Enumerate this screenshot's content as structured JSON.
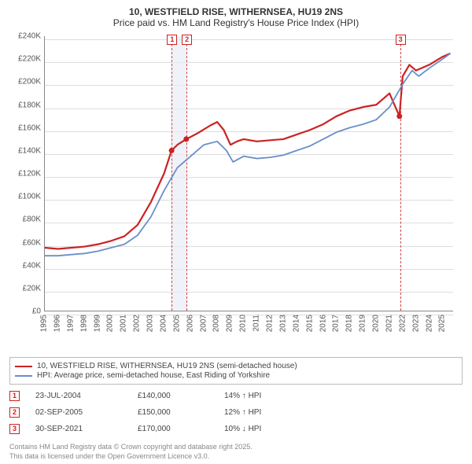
{
  "title": "10, WESTFIELD RISE, WITHERNSEA, HU19 2NS",
  "subtitle": "Price paid vs. HM Land Registry's House Price Index (HPI)",
  "chart": {
    "type": "line",
    "ylim": [
      0,
      240000
    ],
    "ytick_step": 20000,
    "ylabel_prefix": "£",
    "ylabel_k_suffix": "K",
    "xlim": [
      1995,
      2025.8
    ],
    "xticks": [
      1995,
      1996,
      1997,
      1998,
      1999,
      2000,
      2001,
      2002,
      2003,
      2004,
      2005,
      2006,
      2007,
      2008,
      2009,
      2010,
      2011,
      2012,
      2013,
      2014,
      2015,
      2016,
      2017,
      2018,
      2019,
      2020,
      2021,
      2022,
      2023,
      2024,
      2025
    ],
    "background_color": "#ffffff",
    "grid_color": "#dddddd",
    "series": [
      {
        "name": "property",
        "label": "10, WESTFIELD RISE, WITHERNSEA, HU19 2NS (semi-detached house)",
        "color": "#cc2222",
        "width": 2.2,
        "points": [
          [
            1995.0,
            55000
          ],
          [
            1996.0,
            54000
          ],
          [
            1997.0,
            55000
          ],
          [
            1998.0,
            56000
          ],
          [
            1999.0,
            58000
          ],
          [
            2000.0,
            61000
          ],
          [
            2001.0,
            65000
          ],
          [
            2002.0,
            75000
          ],
          [
            2003.0,
            95000
          ],
          [
            2004.0,
            120000
          ],
          [
            2004.56,
            140000
          ],
          [
            2005.0,
            145000
          ],
          [
            2005.67,
            150000
          ],
          [
            2006.5,
            155000
          ],
          [
            2007.5,
            162000
          ],
          [
            2008.0,
            165000
          ],
          [
            2008.5,
            158000
          ],
          [
            2009.0,
            145000
          ],
          [
            2009.5,
            148000
          ],
          [
            2010.0,
            150000
          ],
          [
            2011.0,
            148000
          ],
          [
            2012.0,
            149000
          ],
          [
            2013.0,
            150000
          ],
          [
            2014.0,
            154000
          ],
          [
            2015.0,
            158000
          ],
          [
            2016.0,
            163000
          ],
          [
            2017.0,
            170000
          ],
          [
            2018.0,
            175000
          ],
          [
            2019.0,
            178000
          ],
          [
            2020.0,
            180000
          ],
          [
            2021.0,
            190000
          ],
          [
            2021.75,
            170000
          ],
          [
            2022.0,
            205000
          ],
          [
            2022.5,
            215000
          ],
          [
            2023.0,
            210000
          ],
          [
            2024.0,
            215000
          ],
          [
            2025.0,
            222000
          ],
          [
            2025.6,
            225000
          ]
        ],
        "sale_markers": [
          {
            "x": 2004.56,
            "y": 140000
          },
          {
            "x": 2005.67,
            "y": 150000
          },
          {
            "x": 2021.75,
            "y": 170000
          }
        ]
      },
      {
        "name": "hpi",
        "label": "HPI: Average price, semi-detached house, East Riding of Yorkshire",
        "color": "#6a8fc7",
        "width": 1.8,
        "points": [
          [
            1995.0,
            48000
          ],
          [
            1996.0,
            48000
          ],
          [
            1997.0,
            49000
          ],
          [
            1998.0,
            50000
          ],
          [
            1999.0,
            52000
          ],
          [
            2000.0,
            55000
          ],
          [
            2001.0,
            58000
          ],
          [
            2002.0,
            66000
          ],
          [
            2003.0,
            82000
          ],
          [
            2004.0,
            105000
          ],
          [
            2005.0,
            125000
          ],
          [
            2006.0,
            135000
          ],
          [
            2007.0,
            145000
          ],
          [
            2008.0,
            148000
          ],
          [
            2008.7,
            140000
          ],
          [
            2009.2,
            130000
          ],
          [
            2010.0,
            135000
          ],
          [
            2011.0,
            133000
          ],
          [
            2012.0,
            134000
          ],
          [
            2013.0,
            136000
          ],
          [
            2014.0,
            140000
          ],
          [
            2015.0,
            144000
          ],
          [
            2016.0,
            150000
          ],
          [
            2017.0,
            156000
          ],
          [
            2018.0,
            160000
          ],
          [
            2019.0,
            163000
          ],
          [
            2020.0,
            167000
          ],
          [
            2021.0,
            178000
          ],
          [
            2022.0,
            198000
          ],
          [
            2022.7,
            210000
          ],
          [
            2023.2,
            205000
          ],
          [
            2024.0,
            212000
          ],
          [
            2025.0,
            220000
          ],
          [
            2025.6,
            225000
          ]
        ]
      }
    ],
    "sales": [
      {
        "n": "1",
        "x": 2004.56,
        "date": "23-JUL-2004",
        "price": "£140,000",
        "pct": "14% ↑ HPI"
      },
      {
        "n": "2",
        "x": 2005.67,
        "date": "02-SEP-2005",
        "price": "£150,000",
        "pct": "12% ↑ HPI"
      },
      {
        "n": "3",
        "x": 2021.75,
        "date": "30-SEP-2021",
        "price": "£170,000",
        "pct": "10% ↓ HPI"
      }
    ],
    "band": {
      "from": 2004.56,
      "to": 2005.67,
      "color": "#e8eef6"
    },
    "marker_top_offset": -2
  },
  "legend": {
    "items": [
      {
        "series": "property"
      },
      {
        "series": "hpi"
      }
    ]
  },
  "footnote_line1": "Contains HM Land Registry data © Crown copyright and database right 2025.",
  "footnote_line2": "This data is licensed under the Open Government Licence v3.0."
}
